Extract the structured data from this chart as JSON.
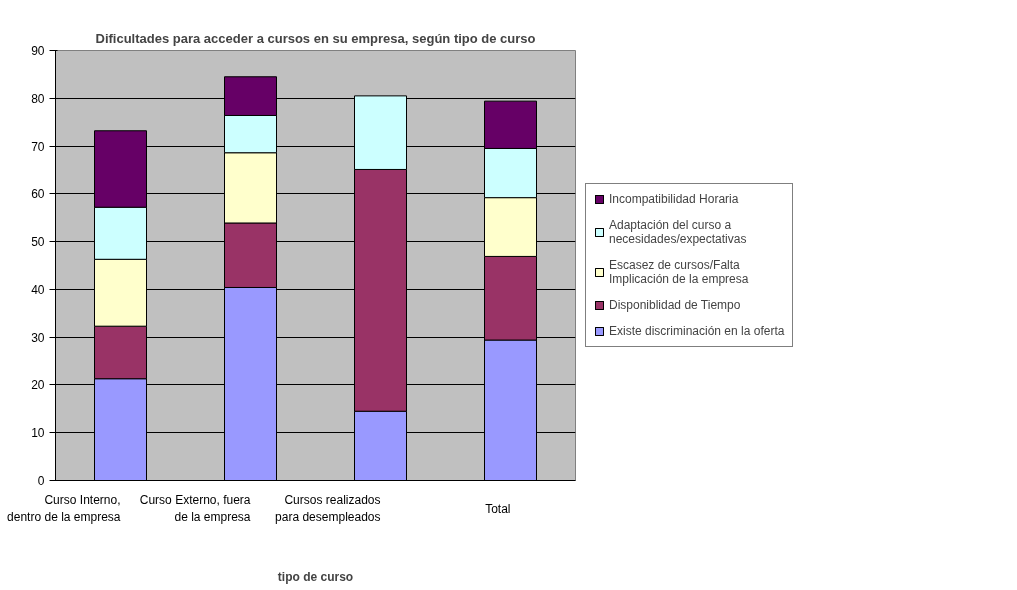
{
  "chart_data": {
    "type": "bar",
    "stacked": true,
    "title": "Dificultades para acceder a cursos en su empresa, según tipo de curso",
    "xlabel": "tipo de curso",
    "categories": [
      "Curso Interno, dentro de la empresa",
      "Curso Externo, fuera de la empresa",
      "Cursos realizados para desempleados",
      "Total"
    ],
    "series": [
      {
        "name": "Existe discriminación en la oferta",
        "color": "#9999ff",
        "values": [
          21.3,
          40.4,
          14.5,
          29.4
        ]
      },
      {
        "name": "Disponiblidad de Tiempo",
        "color": "#993366",
        "values": [
          11.0,
          13.5,
          50.6,
          17.5
        ]
      },
      {
        "name": "Escasez de cursos/Falta Implicación de la empresa",
        "color": "#ffffcc",
        "values": [
          14.0,
          14.7,
          null,
          12.3
        ]
      },
      {
        "name": "Adaptación del curso a necesidades/expectativas",
        "color": "#ccffff",
        "values": [
          10.9,
          7.8,
          15.4,
          10.3
        ]
      },
      {
        "name": "Incompatibilidad Horaria",
        "color": "#660066",
        "values": [
          16.0,
          8.1,
          null,
          9.9
        ]
      }
    ],
    "ylim": [
      0,
      90
    ],
    "yticks": [
      0,
      10,
      20,
      30,
      40,
      50,
      60,
      70,
      80,
      90
    ],
    "grid": "y",
    "legend": "right"
  }
}
